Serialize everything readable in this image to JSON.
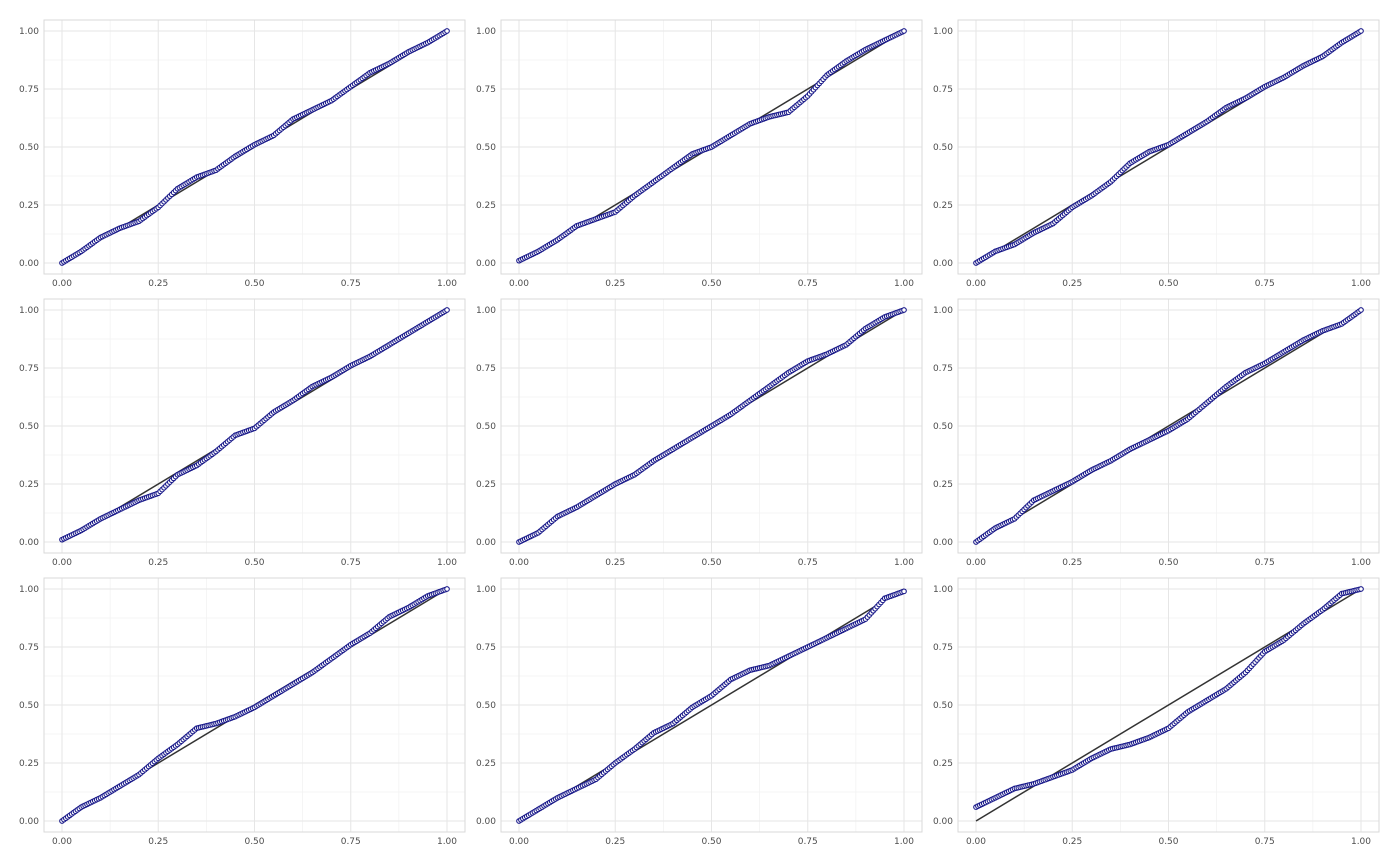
{
  "chart_data": [
    {
      "type": "scatter",
      "title": "",
      "xlabel": "",
      "ylabel": "",
      "xlim": [
        0,
        1
      ],
      "ylim": [
        0,
        1
      ],
      "grid": true,
      "xticks": [
        "0.00",
        "0.25",
        "0.50",
        "0.75",
        "1.00"
      ],
      "yticks": [
        "0.00",
        "0.25",
        "0.50",
        "0.75",
        "1.00"
      ],
      "reference_line": [
        [
          0,
          0
        ],
        [
          1,
          1
        ]
      ],
      "x": [
        0,
        0.05,
        0.1,
        0.15,
        0.2,
        0.25,
        0.3,
        0.35,
        0.4,
        0.45,
        0.5,
        0.55,
        0.6,
        0.65,
        0.7,
        0.75,
        0.8,
        0.85,
        0.9,
        0.95,
        1
      ],
      "y": [
        0,
        0.05,
        0.11,
        0.15,
        0.18,
        0.24,
        0.32,
        0.37,
        0.4,
        0.46,
        0.51,
        0.55,
        0.62,
        0.66,
        0.7,
        0.76,
        0.82,
        0.86,
        0.91,
        0.95,
        1
      ]
    },
    {
      "type": "scatter",
      "title": "",
      "xlabel": "",
      "ylabel": "",
      "xlim": [
        0,
        1
      ],
      "ylim": [
        0,
        1
      ],
      "grid": true,
      "xticks": [
        "0.00",
        "0.25",
        "0.50",
        "0.75",
        "1.00"
      ],
      "yticks": [
        "0.00",
        "0.25",
        "0.50",
        "0.75",
        "1.00"
      ],
      "reference_line": [
        [
          0,
          0
        ],
        [
          1,
          1
        ]
      ],
      "x": [
        0,
        0.05,
        0.1,
        0.15,
        0.2,
        0.25,
        0.3,
        0.35,
        0.4,
        0.45,
        0.5,
        0.55,
        0.6,
        0.65,
        0.7,
        0.75,
        0.8,
        0.85,
        0.9,
        0.95,
        1
      ],
      "y": [
        0.01,
        0.05,
        0.1,
        0.16,
        0.19,
        0.22,
        0.29,
        0.35,
        0.41,
        0.47,
        0.5,
        0.55,
        0.6,
        0.63,
        0.65,
        0.72,
        0.81,
        0.87,
        0.92,
        0.96,
        1
      ]
    },
    {
      "type": "scatter",
      "title": "",
      "xlabel": "",
      "ylabel": "",
      "xlim": [
        0,
        1
      ],
      "ylim": [
        0,
        1
      ],
      "grid": true,
      "xticks": [
        "0.00",
        "0.25",
        "0.50",
        "0.75",
        "1.00"
      ],
      "yticks": [
        "0.00",
        "0.25",
        "0.50",
        "0.75",
        "1.00"
      ],
      "reference_line": [
        [
          0,
          0
        ],
        [
          1,
          1
        ]
      ],
      "x": [
        0,
        0.05,
        0.1,
        0.15,
        0.2,
        0.25,
        0.3,
        0.35,
        0.4,
        0.45,
        0.5,
        0.55,
        0.6,
        0.65,
        0.7,
        0.75,
        0.8,
        0.85,
        0.9,
        0.95,
        1
      ],
      "y": [
        0,
        0.05,
        0.08,
        0.13,
        0.17,
        0.24,
        0.29,
        0.35,
        0.43,
        0.48,
        0.51,
        0.56,
        0.61,
        0.67,
        0.71,
        0.76,
        0.8,
        0.85,
        0.89,
        0.95,
        1
      ]
    },
    {
      "type": "scatter",
      "title": "",
      "xlabel": "",
      "ylabel": "",
      "xlim": [
        0,
        1
      ],
      "ylim": [
        0,
        1
      ],
      "grid": true,
      "xticks": [
        "0.00",
        "0.25",
        "0.50",
        "0.75",
        "1.00"
      ],
      "yticks": [
        "0.00",
        "0.25",
        "0.50",
        "0.75",
        "1.00"
      ],
      "reference_line": [
        [
          0,
          0
        ],
        [
          1,
          1
        ]
      ],
      "x": [
        0,
        0.05,
        0.1,
        0.15,
        0.2,
        0.25,
        0.3,
        0.35,
        0.4,
        0.45,
        0.5,
        0.55,
        0.6,
        0.65,
        0.7,
        0.75,
        0.8,
        0.85,
        0.9,
        0.95,
        1
      ],
      "y": [
        0.01,
        0.05,
        0.1,
        0.14,
        0.18,
        0.21,
        0.29,
        0.33,
        0.39,
        0.46,
        0.49,
        0.56,
        0.61,
        0.67,
        0.71,
        0.76,
        0.8,
        0.85,
        0.9,
        0.95,
        1
      ]
    },
    {
      "type": "scatter",
      "title": "",
      "xlabel": "",
      "ylabel": "",
      "xlim": [
        0,
        1
      ],
      "ylim": [
        0,
        1
      ],
      "grid": true,
      "xticks": [
        "0.00",
        "0.25",
        "0.50",
        "0.75",
        "1.00"
      ],
      "yticks": [
        "0.00",
        "0.25",
        "0.50",
        "0.75",
        "1.00"
      ],
      "reference_line": [
        [
          0,
          0
        ],
        [
          1,
          1
        ]
      ],
      "x": [
        0,
        0.05,
        0.1,
        0.15,
        0.2,
        0.25,
        0.3,
        0.35,
        0.4,
        0.45,
        0.5,
        0.55,
        0.6,
        0.65,
        0.7,
        0.75,
        0.8,
        0.85,
        0.9,
        0.95,
        1
      ],
      "y": [
        0,
        0.04,
        0.11,
        0.15,
        0.2,
        0.25,
        0.29,
        0.35,
        0.4,
        0.45,
        0.5,
        0.55,
        0.61,
        0.67,
        0.73,
        0.78,
        0.81,
        0.85,
        0.92,
        0.97,
        1
      ]
    },
    {
      "type": "scatter",
      "title": "",
      "xlabel": "",
      "ylabel": "",
      "xlim": [
        0,
        1
      ],
      "ylim": [
        0,
        1
      ],
      "grid": true,
      "xticks": [
        "0.00",
        "0.25",
        "0.50",
        "0.75",
        "1.00"
      ],
      "yticks": [
        "0.00",
        "0.25",
        "0.50",
        "0.75",
        "1.00"
      ],
      "reference_line": [
        [
          0,
          0
        ],
        [
          1,
          1
        ]
      ],
      "x": [
        0,
        0.05,
        0.1,
        0.15,
        0.2,
        0.25,
        0.3,
        0.35,
        0.4,
        0.45,
        0.5,
        0.55,
        0.6,
        0.65,
        0.7,
        0.75,
        0.8,
        0.85,
        0.9,
        0.95,
        1
      ],
      "y": [
        0,
        0.06,
        0.1,
        0.18,
        0.22,
        0.26,
        0.31,
        0.35,
        0.4,
        0.44,
        0.48,
        0.53,
        0.6,
        0.67,
        0.73,
        0.77,
        0.82,
        0.87,
        0.91,
        0.94,
        1
      ]
    },
    {
      "type": "scatter",
      "title": "",
      "xlabel": "",
      "ylabel": "",
      "xlim": [
        0,
        1
      ],
      "ylim": [
        0,
        1
      ],
      "grid": true,
      "xticks": [
        "0.00",
        "0.25",
        "0.50",
        "0.75",
        "1.00"
      ],
      "yticks": [
        "0.00",
        "0.25",
        "0.50",
        "0.75",
        "1.00"
      ],
      "reference_line": [
        [
          0,
          0
        ],
        [
          1,
          1
        ]
      ],
      "x": [
        0,
        0.05,
        0.1,
        0.15,
        0.2,
        0.25,
        0.3,
        0.35,
        0.4,
        0.45,
        0.5,
        0.55,
        0.6,
        0.65,
        0.7,
        0.75,
        0.8,
        0.85,
        0.9,
        0.95,
        1
      ],
      "y": [
        0,
        0.06,
        0.1,
        0.15,
        0.2,
        0.27,
        0.33,
        0.4,
        0.42,
        0.45,
        0.49,
        0.54,
        0.59,
        0.64,
        0.7,
        0.76,
        0.81,
        0.88,
        0.92,
        0.97,
        1
      ]
    },
    {
      "type": "scatter",
      "title": "",
      "xlabel": "",
      "ylabel": "",
      "xlim": [
        0,
        1
      ],
      "ylim": [
        0,
        1
      ],
      "grid": true,
      "xticks": [
        "0.00",
        "0.25",
        "0.50",
        "0.75",
        "1.00"
      ],
      "yticks": [
        "0.00",
        "0.25",
        "0.50",
        "0.75",
        "1.00"
      ],
      "reference_line": [
        [
          0,
          0
        ],
        [
          1,
          1
        ]
      ],
      "x": [
        0,
        0.05,
        0.1,
        0.15,
        0.2,
        0.25,
        0.3,
        0.35,
        0.4,
        0.45,
        0.5,
        0.55,
        0.6,
        0.65,
        0.7,
        0.75,
        0.8,
        0.85,
        0.9,
        0.95,
        1
      ],
      "y": [
        0,
        0.05,
        0.1,
        0.14,
        0.18,
        0.25,
        0.31,
        0.38,
        0.42,
        0.49,
        0.54,
        0.61,
        0.65,
        0.67,
        0.71,
        0.75,
        0.79,
        0.83,
        0.87,
        0.96,
        0.99
      ]
    },
    {
      "type": "scatter",
      "title": "",
      "xlabel": "",
      "ylabel": "",
      "xlim": [
        0,
        1
      ],
      "ylim": [
        0,
        1
      ],
      "grid": true,
      "xticks": [
        "0.00",
        "0.25",
        "0.50",
        "0.75",
        "1.00"
      ],
      "yticks": [
        "0.00",
        "0.25",
        "0.50",
        "0.75",
        "1.00"
      ],
      "reference_line": [
        [
          0,
          0
        ],
        [
          1,
          1
        ]
      ],
      "x": [
        0,
        0.05,
        0.1,
        0.15,
        0.2,
        0.25,
        0.3,
        0.35,
        0.4,
        0.45,
        0.5,
        0.55,
        0.6,
        0.65,
        0.7,
        0.75,
        0.8,
        0.85,
        0.9,
        0.95,
        1
      ],
      "y": [
        0.06,
        0.1,
        0.14,
        0.16,
        0.19,
        0.22,
        0.27,
        0.31,
        0.33,
        0.36,
        0.4,
        0.47,
        0.52,
        0.57,
        0.64,
        0.73,
        0.78,
        0.85,
        0.91,
        0.98,
        1
      ]
    }
  ]
}
